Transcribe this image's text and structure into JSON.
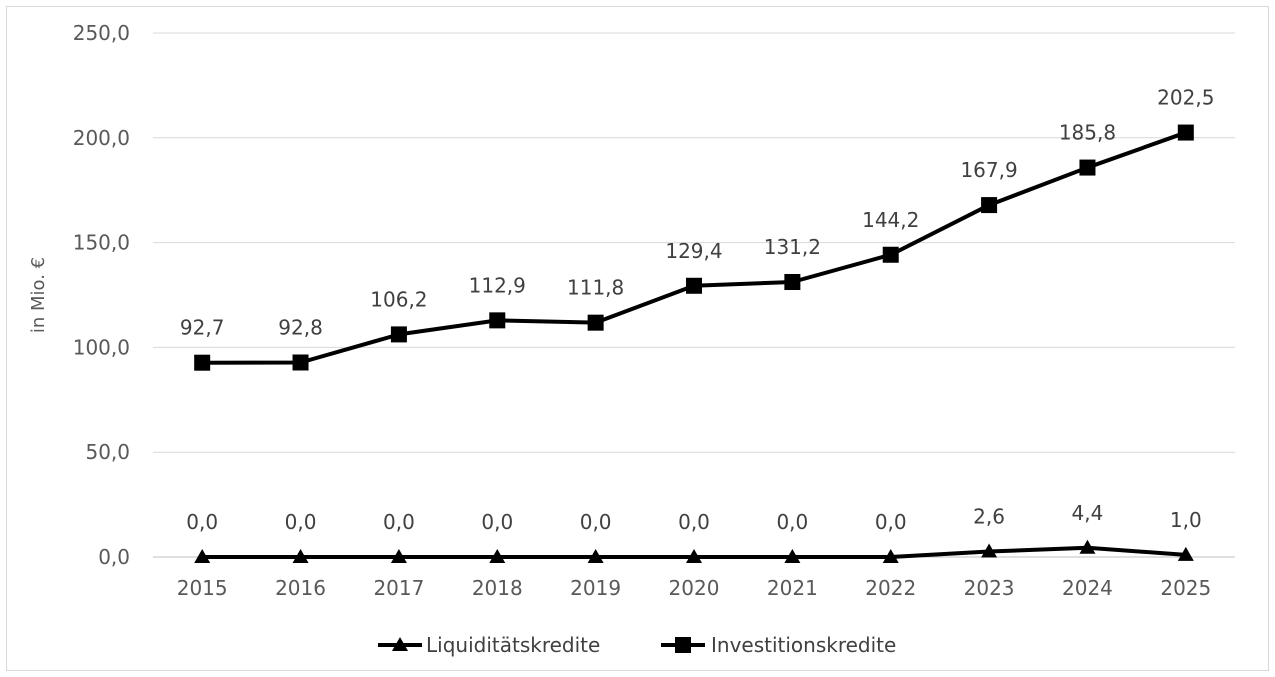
{
  "chart_data": {
    "type": "line",
    "title": "",
    "xlabel": "",
    "ylabel": "in Mio. €",
    "ylim": [
      0,
      250
    ],
    "y_ticks": [
      "0,0",
      "50,0",
      "100,0",
      "150,0",
      "200,0",
      "250,0"
    ],
    "y_tick_values": [
      0,
      50,
      100,
      150,
      200,
      250
    ],
    "categories": [
      "2015",
      "2016",
      "2017",
      "2018",
      "2019",
      "2020",
      "2021",
      "2022",
      "2023",
      "2024",
      "2025"
    ],
    "grid": "horizontal",
    "legend_position": "bottom",
    "series": [
      {
        "name": "Liquiditätskredite",
        "marker": "triangle",
        "color": "#000000",
        "values": [
          0.0,
          0.0,
          0.0,
          0.0,
          0.0,
          0.0,
          0.0,
          0.0,
          2.6,
          4.4,
          1.0
        ],
        "labels": [
          "0,0",
          "0,0",
          "0,0",
          "0,0",
          "0,0",
          "0,0",
          "0,0",
          "0,0",
          "2,6",
          "4,4",
          "1,0"
        ]
      },
      {
        "name": "Investitionskredite",
        "marker": "square",
        "color": "#000000",
        "values": [
          92.7,
          92.8,
          106.2,
          112.9,
          111.8,
          129.4,
          131.2,
          144.2,
          167.9,
          185.8,
          202.5
        ],
        "labels": [
          "92,7",
          "92,8",
          "106,2",
          "112,9",
          "111,8",
          "129,4",
          "131,2",
          "144,2",
          "167,9",
          "185,8",
          "202,5"
        ]
      }
    ]
  }
}
